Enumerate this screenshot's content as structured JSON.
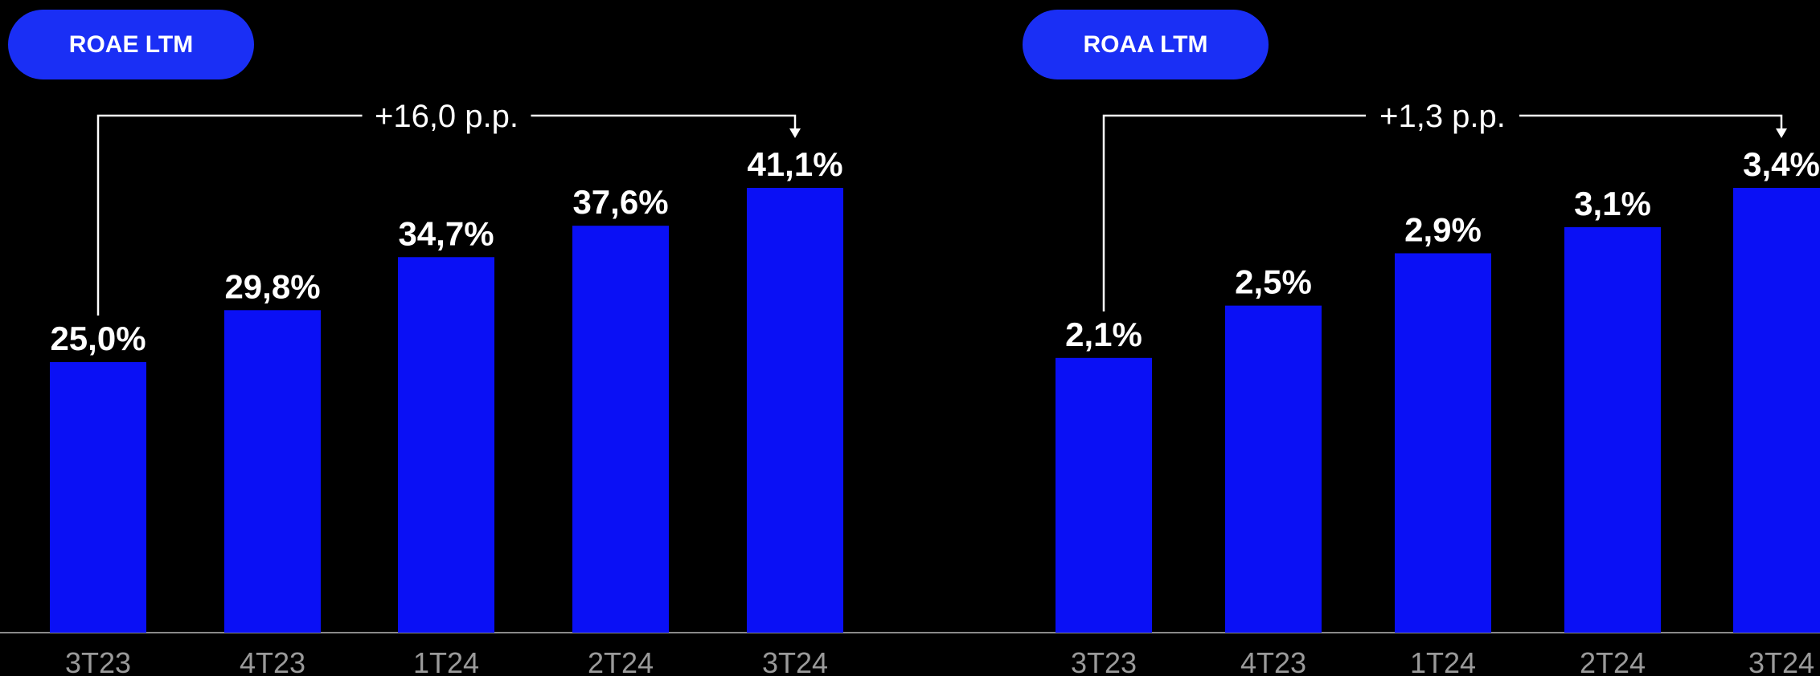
{
  "colors": {
    "background": "#000000",
    "bar": "#0a10f5",
    "pill": "#1a2ff5",
    "text": "#ffffff",
    "tick": "#9a9a9a",
    "axis": "#8a8a8a"
  },
  "chart_data": [
    {
      "type": "bar",
      "title": "ROAE LTM",
      "categories": [
        "3T23",
        "4T23",
        "1T24",
        "2T24",
        "3T24"
      ],
      "values": [
        25.0,
        29.8,
        34.7,
        37.6,
        41.1
      ],
      "value_labels": [
        "25,0%",
        "29,8%",
        "34,7%",
        "37,6%",
        "41,1%"
      ],
      "annotation": "+16,0 p.p.",
      "ylim": [
        0,
        41.1
      ],
      "grid": false,
      "legend": "none"
    },
    {
      "type": "bar",
      "title": "ROAA LTM",
      "categories": [
        "3T23",
        "4T23",
        "1T24",
        "2T24",
        "3T24"
      ],
      "values": [
        2.1,
        2.5,
        2.9,
        3.1,
        3.4
      ],
      "value_labels": [
        "2,1%",
        "2,5%",
        "2,9%",
        "3,1%",
        "3,4%"
      ],
      "annotation": "+1,3 p.p.",
      "ylim": [
        0,
        3.4
      ],
      "grid": false,
      "legend": "none"
    }
  ]
}
